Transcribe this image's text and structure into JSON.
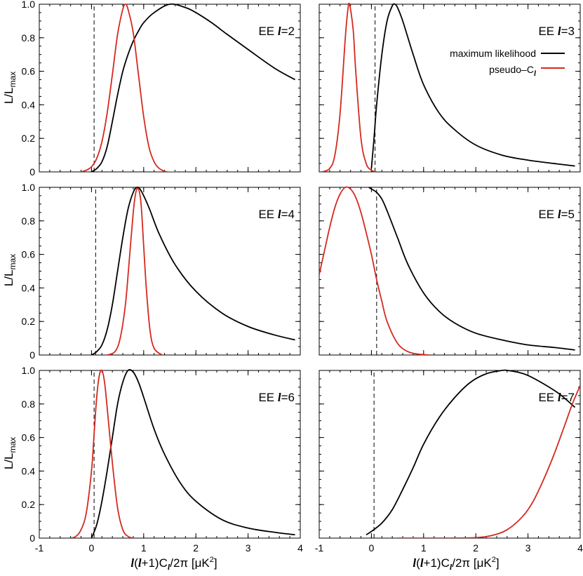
{
  "figure": {
    "ylabel_main": "L/L",
    "ylabel_sub": "max",
    "xlabel_parts": {
      "ell1": "l",
      "mid": "(",
      "ell2": "l",
      "rest": "+1)C",
      "sub": "l",
      "tail": "/2π [μK",
      "sup": "2",
      "close": "]"
    },
    "panel_prefix": "EE ",
    "ell_symbol": "l",
    "eq": "=",
    "colors": {
      "ml": "#000000",
      "pcl": "#d42a1e",
      "threshold": "#000000"
    }
  },
  "legend": {
    "items": [
      {
        "label": "maximum likelihood",
        "color": "#000000"
      },
      {
        "label_main": "pseudo–C",
        "label_sub": "l",
        "color": "#d42a1e"
      }
    ]
  },
  "chart_data": [
    {
      "type": "line",
      "panel": "EE l=2",
      "multipole": "2",
      "xlim": [
        -1,
        4
      ],
      "ylim": [
        0,
        1
      ],
      "xticks": [
        "-1",
        "0",
        "1",
        "2",
        "3",
        "4"
      ],
      "xticklabels_shown": false,
      "yticks": [
        "0",
        "0.2",
        "0.4",
        "0.6",
        "0.8",
        "1.0"
      ],
      "yticklabels_shown": true,
      "threshold_x": 0.05,
      "series": [
        {
          "name": "maximum likelihood",
          "x": [
            0,
            0.1,
            0.2,
            0.3,
            0.4,
            0.5,
            0.6,
            0.7,
            0.8,
            0.9,
            1.0,
            1.2,
            1.5,
            1.8,
            2.0,
            2.3,
            2.6,
            3.0,
            3.5,
            3.9
          ],
          "y": [
            0,
            0.02,
            0.06,
            0.15,
            0.3,
            0.46,
            0.6,
            0.7,
            0.78,
            0.84,
            0.89,
            0.95,
            1.0,
            0.98,
            0.95,
            0.89,
            0.82,
            0.73,
            0.62,
            0.55
          ]
        },
        {
          "name": "pseudo-Cl",
          "x": [
            -0.2,
            -0.1,
            0,
            0.1,
            0.2,
            0.3,
            0.4,
            0.5,
            0.6,
            0.65,
            0.7,
            0.8,
            0.9,
            1.0,
            1.1,
            1.2,
            1.3,
            1.45,
            1.7
          ],
          "y": [
            0,
            0.01,
            0.03,
            0.08,
            0.18,
            0.35,
            0.58,
            0.82,
            0.97,
            1.0,
            0.97,
            0.83,
            0.58,
            0.33,
            0.15,
            0.06,
            0.02,
            0,
            0
          ]
        }
      ]
    },
    {
      "type": "line",
      "panel": "EE l=3",
      "multipole": "3",
      "xlim": [
        -1,
        4
      ],
      "ylim": [
        0,
        1
      ],
      "xticks": [
        "-1",
        "0",
        "1",
        "2",
        "3",
        "4"
      ],
      "xticklabels_shown": false,
      "yticks": [
        "0",
        "0.2",
        "0.4",
        "0.6",
        "0.8",
        "1.0"
      ],
      "yticklabels_shown": false,
      "threshold_x": 0.07,
      "series": [
        {
          "name": "maximum likelihood",
          "x": [
            0,
            0.05,
            0.1,
            0.2,
            0.3,
            0.4,
            0.45,
            0.5,
            0.6,
            0.8,
            1.0,
            1.3,
            1.6,
            2.0,
            2.5,
            3.0,
            3.5,
            3.9
          ],
          "y": [
            0.02,
            0.2,
            0.4,
            0.7,
            0.9,
            0.99,
            1.0,
            0.98,
            0.9,
            0.7,
            0.52,
            0.35,
            0.25,
            0.16,
            0.1,
            0.07,
            0.05,
            0.035
          ]
        },
        {
          "name": "pseudo-Cl",
          "x": [
            -0.95,
            -0.8,
            -0.7,
            -0.6,
            -0.5,
            -0.45,
            -0.42,
            -0.35,
            -0.3,
            -0.2,
            -0.1,
            0,
            0.1
          ],
          "y": [
            0,
            0.02,
            0.1,
            0.35,
            0.8,
            0.97,
            1.0,
            0.85,
            0.6,
            0.2,
            0.05,
            0.01,
            0
          ]
        }
      ]
    },
    {
      "type": "line",
      "panel": "EE l=4",
      "multipole": "4",
      "xlim": [
        -1,
        4
      ],
      "ylim": [
        0,
        1
      ],
      "xticks": [
        "-1",
        "0",
        "1",
        "2",
        "3",
        "4"
      ],
      "xticklabels_shown": false,
      "yticks": [
        "0",
        "0.2",
        "0.4",
        "0.6",
        "0.8",
        "1.0"
      ],
      "yticklabels_shown": true,
      "threshold_x": 0.08,
      "series": [
        {
          "name": "maximum likelihood",
          "x": [
            0,
            0.1,
            0.2,
            0.3,
            0.4,
            0.5,
            0.6,
            0.7,
            0.8,
            0.87,
            0.95,
            1.1,
            1.3,
            1.6,
            2.0,
            2.5,
            3.0,
            3.5,
            3.9
          ],
          "y": [
            0,
            0.02,
            0.06,
            0.15,
            0.3,
            0.5,
            0.7,
            0.87,
            0.97,
            1.0,
            0.98,
            0.88,
            0.72,
            0.54,
            0.38,
            0.25,
            0.17,
            0.12,
            0.09
          ]
        },
        {
          "name": "pseudo-Cl",
          "x": [
            0.3,
            0.45,
            0.55,
            0.65,
            0.72,
            0.8,
            0.85,
            0.9,
            0.95,
            1.0,
            1.05,
            1.12,
            1.2,
            1.35
          ],
          "y": [
            0,
            0.02,
            0.1,
            0.3,
            0.55,
            0.85,
            0.97,
            0.99,
            0.9,
            0.65,
            0.4,
            0.15,
            0.04,
            0
          ]
        }
      ]
    },
    {
      "type": "line",
      "panel": "EE l=5",
      "multipole": "5",
      "xlim": [
        -1,
        4
      ],
      "ylim": [
        0,
        1
      ],
      "xticks": [
        "-1",
        "0",
        "1",
        "2",
        "3",
        "4"
      ],
      "xticklabels_shown": false,
      "yticks": [
        "0",
        "0.2",
        "0.4",
        "0.6",
        "0.8",
        "1.0"
      ],
      "yticklabels_shown": false,
      "threshold_x": 0.1,
      "series": [
        {
          "name": "maximum likelihood",
          "x": [
            -0.05,
            0,
            0.1,
            0.2,
            0.3,
            0.5,
            0.7,
            1.0,
            1.3,
            1.6,
            2.0,
            2.5,
            3.0,
            3.5,
            3.9
          ],
          "y": [
            1.0,
            0.99,
            0.97,
            0.93,
            0.86,
            0.7,
            0.54,
            0.37,
            0.26,
            0.19,
            0.13,
            0.09,
            0.06,
            0.045,
            0.03
          ]
        },
        {
          "name": "pseudo-Cl",
          "x": [
            -1,
            -0.9,
            -0.8,
            -0.7,
            -0.6,
            -0.5,
            -0.4,
            -0.3,
            -0.2,
            -0.1,
            0,
            0.1,
            0.2,
            0.3,
            0.5,
            0.7,
            0.9,
            1.1
          ],
          "y": [
            0.48,
            0.62,
            0.76,
            0.88,
            0.96,
            1.0,
            0.99,
            0.94,
            0.85,
            0.73,
            0.6,
            0.45,
            0.32,
            0.2,
            0.07,
            0.02,
            0.005,
            0
          ]
        }
      ]
    },
    {
      "type": "line",
      "panel": "EE l=6",
      "multipole": "6",
      "xlim": [
        -1,
        4
      ],
      "ylim": [
        0,
        1
      ],
      "xticks": [
        "-1",
        "0",
        "1",
        "2",
        "3",
        "4"
      ],
      "xticklabels_shown": true,
      "yticks": [
        "0",
        "0.2",
        "0.4",
        "0.6",
        "0.8",
        "1.0"
      ],
      "yticklabels_shown": true,
      "threshold_x": 0.05,
      "series": [
        {
          "name": "maximum likelihood",
          "x": [
            0,
            0.1,
            0.2,
            0.3,
            0.4,
            0.5,
            0.6,
            0.7,
            0.8,
            0.9,
            1.0,
            1.2,
            1.4,
            1.7,
            2.0,
            2.5,
            3.0,
            3.5,
            3.9
          ],
          "y": [
            0,
            0.08,
            0.22,
            0.4,
            0.6,
            0.8,
            0.93,
            1.0,
            0.99,
            0.93,
            0.84,
            0.65,
            0.5,
            0.33,
            0.22,
            0.11,
            0.06,
            0.035,
            0.02
          ]
        },
        {
          "name": "pseudo-Cl",
          "x": [
            -0.4,
            -0.3,
            -0.2,
            -0.1,
            0,
            0.05,
            0.1,
            0.15,
            0.2,
            0.25,
            0.3,
            0.4,
            0.5,
            0.6,
            0.7,
            0.8
          ],
          "y": [
            0,
            0.01,
            0.05,
            0.15,
            0.4,
            0.62,
            0.84,
            0.97,
            1.0,
            0.93,
            0.78,
            0.45,
            0.18,
            0.05,
            0.01,
            0
          ]
        }
      ]
    },
    {
      "type": "line",
      "panel": "EE l=7",
      "multipole": "7",
      "xlim": [
        -1,
        4
      ],
      "ylim": [
        0,
        1
      ],
      "xticks": [
        "-1",
        "0",
        "1",
        "2",
        "3",
        "4"
      ],
      "xticklabels_shown": true,
      "yticks": [
        "0",
        "0.2",
        "0.4",
        "0.6",
        "0.8",
        "1.0"
      ],
      "yticklabels_shown": false,
      "threshold_x": 0.05,
      "series": [
        {
          "name": "maximum likelihood",
          "x": [
            -0.1,
            0,
            0.2,
            0.4,
            0.6,
            0.8,
            1.0,
            1.3,
            1.6,
            1.9,
            2.2,
            2.5,
            2.6,
            2.8,
            3.0,
            3.3,
            3.6,
            3.9
          ],
          "y": [
            0.02,
            0.04,
            0.09,
            0.17,
            0.29,
            0.42,
            0.56,
            0.72,
            0.84,
            0.93,
            0.98,
            1.0,
            1.0,
            0.99,
            0.97,
            0.92,
            0.86,
            0.78
          ]
        },
        {
          "name": "pseudo-Cl",
          "x": [
            0.5,
            1.0,
            1.5,
            2.0,
            2.3,
            2.6,
            2.9,
            3.1,
            3.3,
            3.5,
            3.7,
            3.85,
            4.0
          ],
          "y": [
            0,
            0,
            0,
            0.003,
            0.015,
            0.05,
            0.13,
            0.22,
            0.35,
            0.5,
            0.67,
            0.8,
            0.91
          ]
        }
      ]
    }
  ]
}
